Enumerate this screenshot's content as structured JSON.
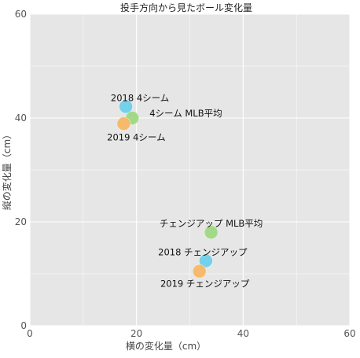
{
  "chart_data": {
    "type": "scatter",
    "title": "投手方向から見たボール変化量",
    "xlabel": "横の変化量（cm）",
    "ylabel": "縦の変化量（cm）",
    "xlim": [
      0,
      60
    ],
    "ylim": [
      0,
      60
    ],
    "x_ticks": [
      "0",
      "20",
      "40",
      "60"
    ],
    "y_ticks": [
      "0",
      "20",
      "40",
      "60"
    ],
    "grid": true,
    "points": [
      {
        "label": "2018 4シーム",
        "x": 18.0,
        "y": 42.2,
        "color": "#6fcfea"
      },
      {
        "label": "4シーム MLB平均",
        "x": 19.2,
        "y": 40.0,
        "color": "#9ed882"
      },
      {
        "label": "2019 4シーム",
        "x": 17.6,
        "y": 38.9,
        "color": "#f7b766"
      },
      {
        "label": "チェンジアップ MLB平均",
        "x": 34.0,
        "y": 18.0,
        "color": "#9ed882"
      },
      {
        "label": "2018 チェンジアップ",
        "x": 33.0,
        "y": 12.5,
        "color": "#6fcfea"
      },
      {
        "label": "2019 チェンジアップ",
        "x": 31.8,
        "y": 10.5,
        "color": "#f7b766"
      }
    ]
  }
}
